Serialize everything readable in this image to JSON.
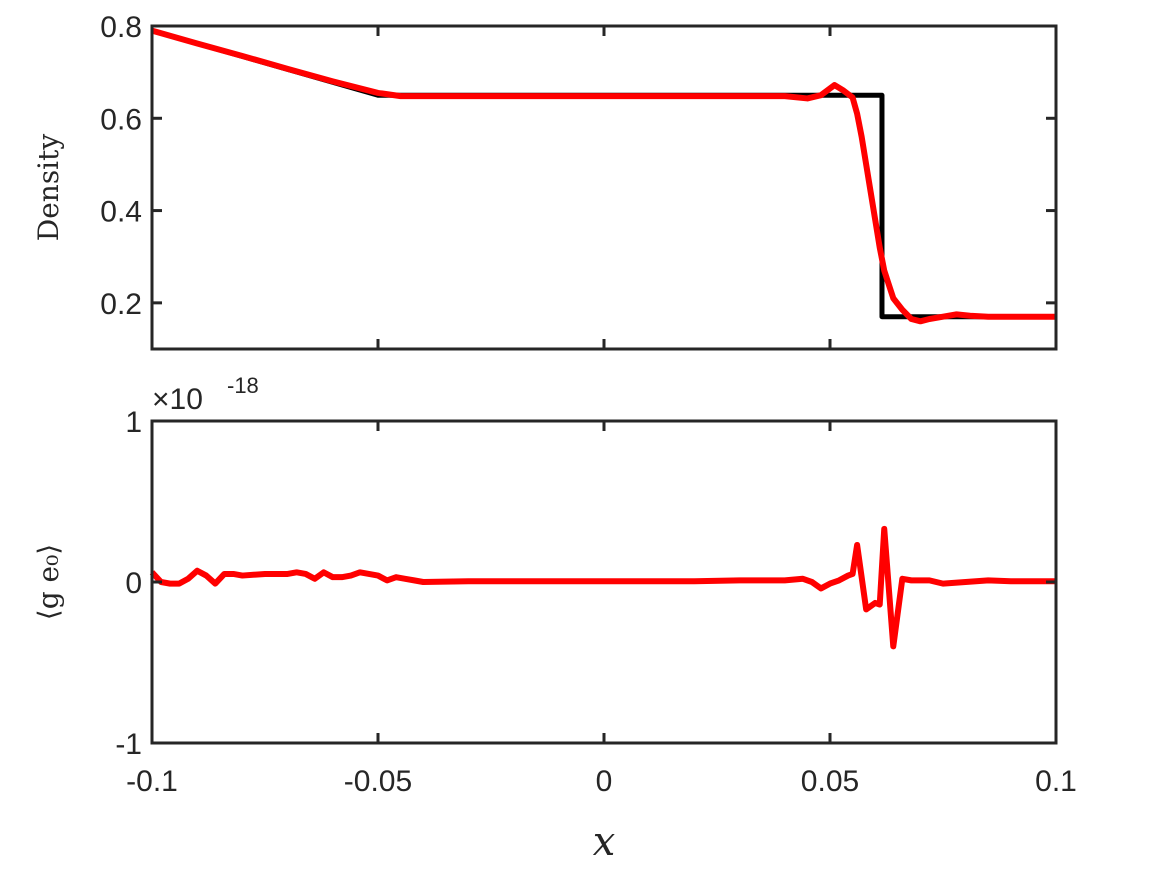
{
  "chart_data": [
    {
      "type": "line",
      "ylabel": "Density",
      "xlabel": "",
      "xlim": [
        -0.1,
        0.1
      ],
      "ylim": [
        0.1,
        0.8
      ],
      "x_ticks": [
        -0.1,
        -0.05,
        0,
        0.05,
        0.1
      ],
      "y_ticks": [
        0.2,
        0.4,
        0.6,
        0.8
      ],
      "y_tick_labels": [
        "0.2",
        "0.4",
        "0.6",
        "0.8"
      ],
      "x_tick_labels_shown": false,
      "grid": false,
      "series": [
        {
          "color": "#000000",
          "x": [
            -0.1,
            -0.05,
            0.0615,
            0.0615,
            0.1
          ],
          "y": [
            0.79,
            0.65,
            0.65,
            0.17,
            0.17
          ]
        },
        {
          "color": "#ff0000",
          "x": [
            -0.1,
            -0.09,
            -0.08,
            -0.07,
            -0.06,
            -0.05,
            -0.045,
            -0.04,
            -0.03,
            -0.02,
            -0.01,
            0.0,
            0.01,
            0.02,
            0.03,
            0.04,
            0.045,
            0.048,
            0.051,
            0.053,
            0.055,
            0.056,
            0.057,
            0.058,
            0.059,
            0.06,
            0.061,
            0.062,
            0.063,
            0.064,
            0.066,
            0.068,
            0.07,
            0.072,
            0.075,
            0.078,
            0.081,
            0.085,
            0.09,
            0.095,
            0.1
          ],
          "y": [
            0.79,
            0.762,
            0.735,
            0.707,
            0.68,
            0.655,
            0.648,
            0.648,
            0.648,
            0.648,
            0.648,
            0.648,
            0.648,
            0.648,
            0.648,
            0.648,
            0.643,
            0.65,
            0.672,
            0.66,
            0.645,
            0.61,
            0.56,
            0.5,
            0.44,
            0.38,
            0.32,
            0.27,
            0.24,
            0.21,
            0.185,
            0.165,
            0.16,
            0.165,
            0.17,
            0.175,
            0.172,
            0.17,
            0.17,
            0.17,
            0.17
          ]
        }
      ]
    },
    {
      "type": "line",
      "ylabel": "⟨g e₀⟩",
      "xlabel": "x",
      "xlim": [
        -0.1,
        0.1
      ],
      "ylim": [
        -1,
        1
      ],
      "x_ticks": [
        -0.1,
        -0.05,
        0,
        0.05,
        0.1
      ],
      "x_tick_labels": [
        "-0.1",
        "-0.05",
        "0",
        "0.05",
        "0.1"
      ],
      "y_ticks": [
        -1,
        0,
        1
      ],
      "y_tick_labels": [
        "-1",
        "0",
        "1"
      ],
      "y_multiplier": "×10",
      "y_multiplier_exponent": "-18",
      "grid": false,
      "series": [
        {
          "color": "#ff0000",
          "x": [
            -0.1,
            -0.098,
            -0.096,
            -0.094,
            -0.092,
            -0.09,
            -0.088,
            -0.086,
            -0.084,
            -0.082,
            -0.08,
            -0.075,
            -0.07,
            -0.068,
            -0.066,
            -0.064,
            -0.062,
            -0.06,
            -0.058,
            -0.056,
            -0.054,
            -0.052,
            -0.05,
            -0.048,
            -0.046,
            -0.044,
            -0.042,
            -0.04,
            -0.03,
            -0.02,
            -0.01,
            0.0,
            0.01,
            0.02,
            0.03,
            0.04,
            0.044,
            0.046,
            0.048,
            0.05,
            0.052,
            0.054,
            0.055,
            0.056,
            0.058,
            0.06,
            0.061,
            0.062,
            0.064,
            0.066,
            0.068,
            0.07,
            0.072,
            0.075,
            0.08,
            0.085,
            0.09,
            0.1
          ],
          "y": [
            0.06,
            0.0,
            -0.01,
            -0.01,
            0.02,
            0.07,
            0.04,
            -0.01,
            0.05,
            0.05,
            0.04,
            0.05,
            0.05,
            0.06,
            0.05,
            0.02,
            0.06,
            0.03,
            0.03,
            0.04,
            0.06,
            0.05,
            0.04,
            0.01,
            0.03,
            0.02,
            0.01,
            0.0,
            0.005,
            0.005,
            0.005,
            0.005,
            0.005,
            0.005,
            0.01,
            0.01,
            0.02,
            0.0,
            -0.04,
            -0.01,
            0.01,
            0.04,
            0.05,
            0.23,
            -0.17,
            -0.13,
            -0.14,
            0.33,
            -0.4,
            0.02,
            0.01,
            0.01,
            0.01,
            -0.01,
            0.0,
            0.01,
            0.005,
            0.005
          ]
        }
      ]
    }
  ]
}
